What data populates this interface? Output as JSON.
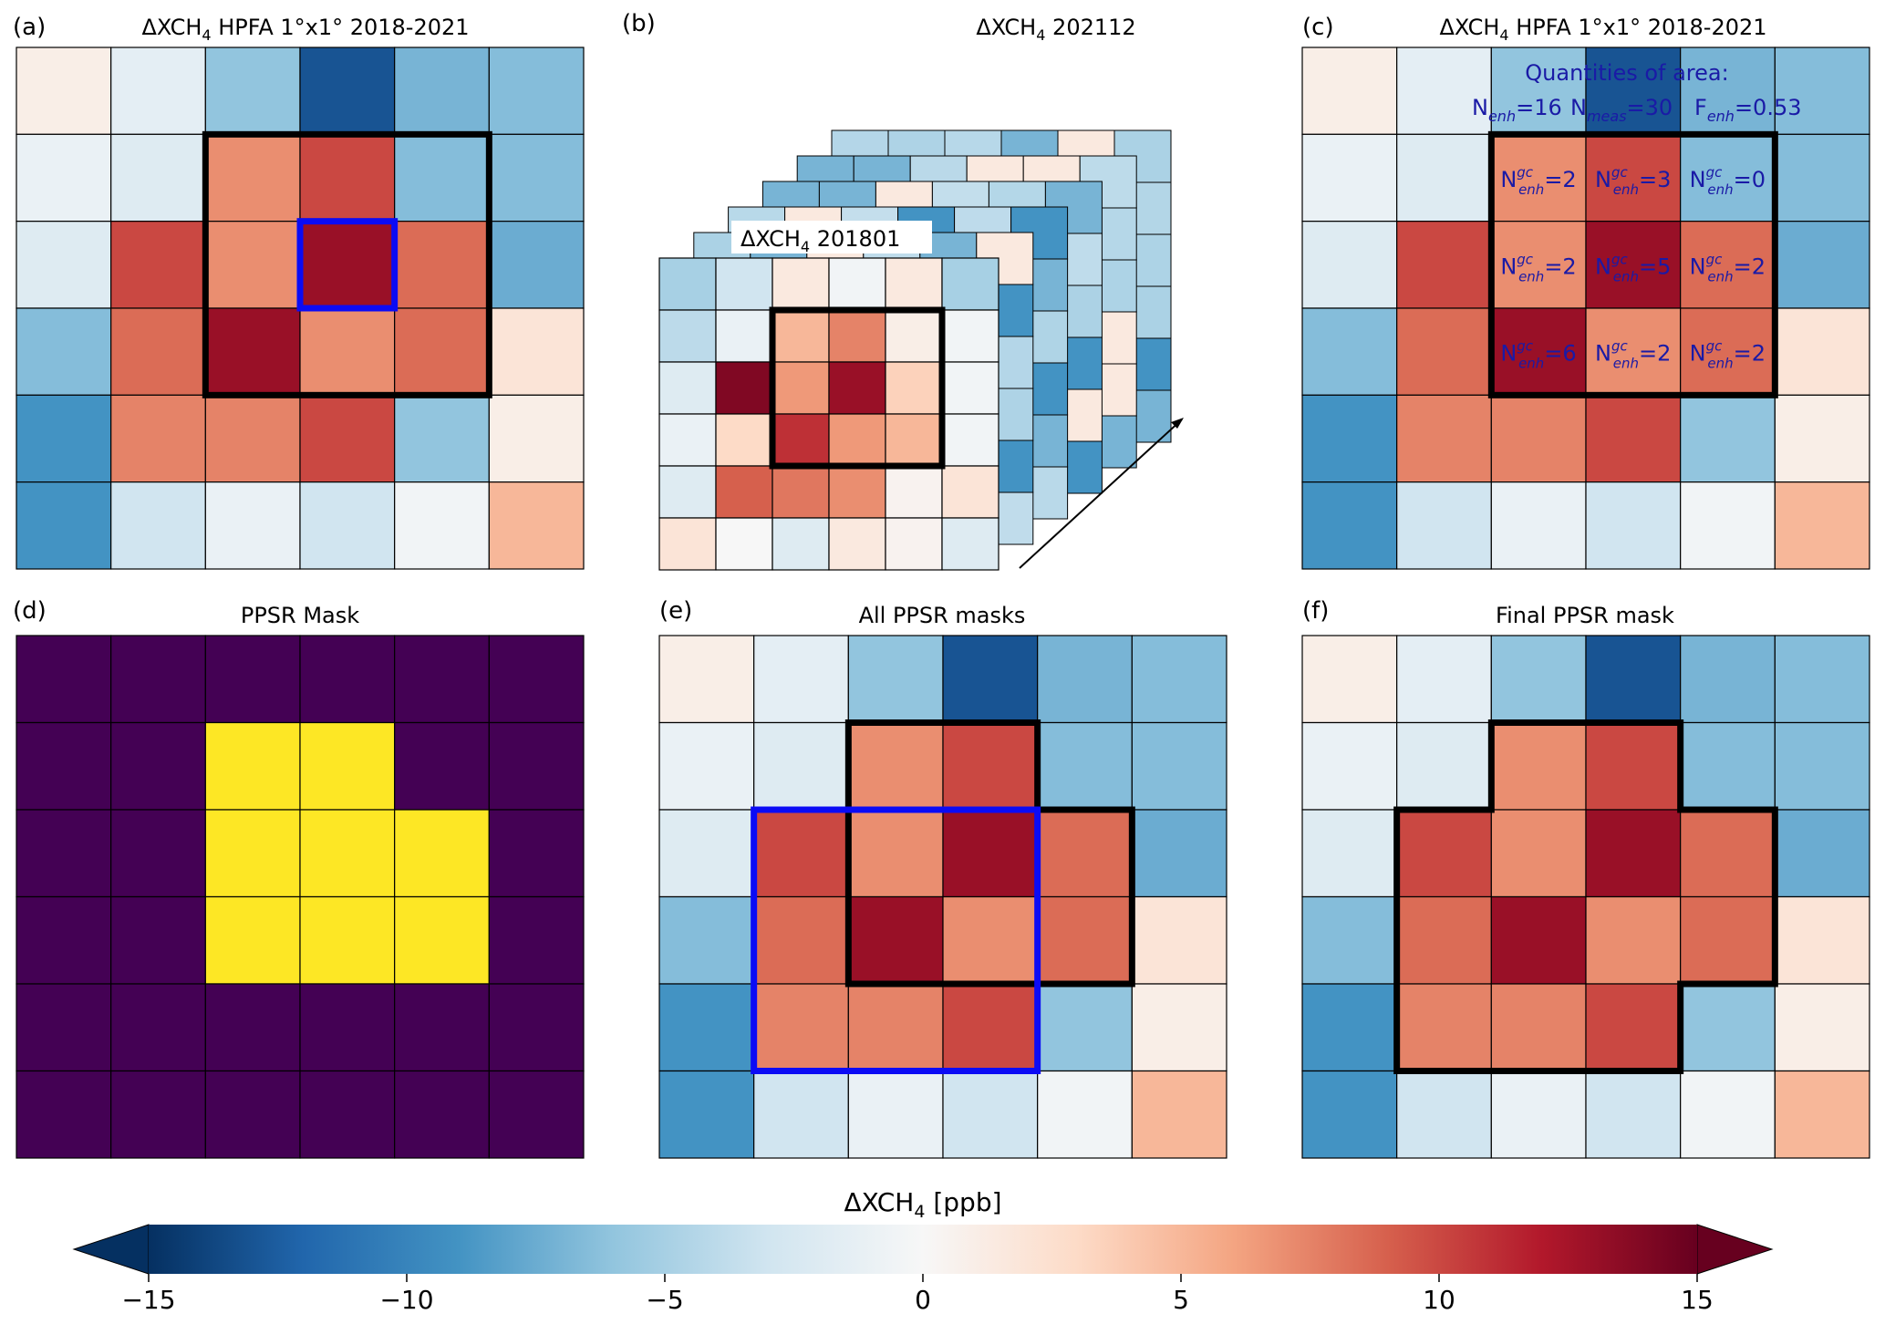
{
  "figure": {
    "panels": {
      "a": {
        "letter": "(a)",
        "title_main": "ΔXCH",
        "title_sub": "4",
        "title_rest": " HPFA 1°x1° 2018-2021"
      },
      "b": {
        "letter": "(b)",
        "top_main": "ΔXCH",
        "top_sub": "4",
        "top_rest": " 202112",
        "front_main": "ΔXCH",
        "front_sub": "4",
        "front_rest": " 201801"
      },
      "c": {
        "letter": "(c)",
        "title_main": "ΔXCH",
        "title_sub": "4",
        "title_rest": " HPFA 1°x1° 2018-2021",
        "quantities_title": "Quantities of area:",
        "quantities": [
          {
            "sym": "N",
            "sub": "enh",
            "val": "=16"
          },
          {
            "sym": "N",
            "sub": "meas",
            "val": "=30"
          },
          {
            "sym": "F",
            "sub": "enh",
            "val": "=0.53"
          }
        ],
        "cell_sym": "N",
        "cell_sup": "gc",
        "cell_sub": "enh"
      },
      "d": {
        "letter": "(d)",
        "title": "PPSR Mask"
      },
      "e": {
        "letter": "(e)",
        "title": "All PPSR masks"
      },
      "f": {
        "letter": "(f)",
        "title": "Final PPSR mask"
      }
    }
  },
  "chart_data": [
    {
      "type": "heatmap",
      "panel": "a",
      "title": "ΔXCH4 HPFA 1°x1° 2018-2021",
      "units": "ppb",
      "values": [
        [
          1,
          -1.5,
          -6,
          -13,
          -7,
          -6.5
        ],
        [
          -1,
          -2,
          7,
          10,
          -6.5,
          -6.5
        ],
        [
          -2,
          10,
          7,
          13,
          8.5,
          -7.5
        ],
        [
          -6.5,
          8.5,
          13,
          7,
          8.5,
          2
        ],
        [
          -9,
          7.5,
          7.5,
          10,
          -6,
          1
        ],
        [
          -9,
          -3,
          -1,
          -3,
          -0.5,
          5
        ]
      ],
      "highlight_black": {
        "rows": [
          1,
          3
        ],
        "cols": [
          2,
          4
        ]
      },
      "highlight_blue": {
        "rows": [
          2,
          2
        ],
        "cols": [
          3,
          3
        ]
      }
    },
    {
      "type": "heatmap",
      "panel": "b",
      "title": "ΔXCH4 201801",
      "units": "ppb",
      "values": [
        [
          -5,
          -3,
          1.5,
          -0.5,
          1.5,
          -5
        ],
        [
          -4,
          -1,
          5,
          7.5,
          1,
          -0.5
        ],
        [
          -2,
          14,
          6.5,
          13,
          3.5,
          -0.5
        ],
        [
          -1,
          3,
          11,
          6.5,
          5,
          -0.5
        ],
        [
          -2,
          9,
          8,
          7,
          0.5,
          2
        ],
        [
          2,
          0,
          -2,
          1.5,
          0.5,
          -2
        ]
      ],
      "highlight_black": {
        "rows": [
          1,
          3
        ],
        "cols": [
          2,
          4
        ]
      },
      "stack_top_title": "ΔXCH4 202112",
      "stack_count": 6
    },
    {
      "type": "heatmap",
      "panel": "c",
      "title": "ΔXCH4 HPFA 1°x1° 2018-2021",
      "units": "ppb",
      "values": [
        [
          1,
          -1.5,
          -6,
          -13,
          -7,
          -6.5
        ],
        [
          -1,
          -2,
          7,
          10,
          -6.5,
          -6.5
        ],
        [
          -2,
          10,
          7,
          13,
          8.5,
          -7.5
        ],
        [
          -6.5,
          8.5,
          13,
          7,
          8.5,
          2
        ],
        [
          -9,
          7.5,
          7.5,
          10,
          -6,
          1
        ],
        [
          -9,
          -3,
          -1,
          -3,
          -0.5,
          5
        ]
      ],
      "highlight_black": {
        "rows": [
          1,
          3
        ],
        "cols": [
          2,
          4
        ]
      },
      "quantities": {
        "N_enh": 16,
        "N_meas": 30,
        "F_enh": 0.53
      },
      "Ngc_enh": [
        [
          2,
          3,
          0
        ],
        [
          2,
          5,
          2
        ],
        [
          6,
          2,
          2
        ]
      ]
    },
    {
      "type": "heatmap",
      "panel": "d",
      "title": "PPSR Mask",
      "colors": {
        "0": "#440154",
        "1": "#fde725"
      },
      "values": [
        [
          0,
          0,
          0,
          0,
          0,
          0
        ],
        [
          0,
          0,
          1,
          1,
          0,
          0
        ],
        [
          0,
          0,
          1,
          1,
          1,
          0
        ],
        [
          0,
          0,
          1,
          1,
          1,
          0
        ],
        [
          0,
          0,
          0,
          0,
          0,
          0
        ],
        [
          0,
          0,
          0,
          0,
          0,
          0
        ]
      ]
    },
    {
      "type": "heatmap",
      "panel": "e",
      "title": "All PPSR masks",
      "units": "ppb",
      "values": [
        [
          1,
          -1.5,
          -6,
          -13,
          -7,
          -6.5
        ],
        [
          -1,
          -2,
          7,
          10,
          -6.5,
          -6.5
        ],
        [
          -2,
          10,
          7,
          13,
          8.5,
          -7.5
        ],
        [
          -6.5,
          8.5,
          13,
          7,
          8.5,
          2
        ],
        [
          -9,
          7.5,
          7.5,
          10,
          -6,
          1
        ],
        [
          -9,
          -3,
          -1,
          -3,
          -0.5,
          5
        ]
      ],
      "mask_outline_black": [
        [
          0,
          0,
          0,
          0,
          0,
          0
        ],
        [
          0,
          0,
          1,
          1,
          0,
          0
        ],
        [
          0,
          0,
          1,
          1,
          1,
          0
        ],
        [
          0,
          0,
          1,
          1,
          1,
          0
        ],
        [
          0,
          0,
          0,
          0,
          0,
          0
        ],
        [
          0,
          0,
          0,
          0,
          0,
          0
        ]
      ],
      "highlight_blue": {
        "rows": [
          2,
          4
        ],
        "cols": [
          1,
          3
        ]
      }
    },
    {
      "type": "heatmap",
      "panel": "f",
      "title": "Final PPSR mask",
      "units": "ppb",
      "values": [
        [
          1,
          -1.5,
          -6,
          -13,
          -7,
          -6.5
        ],
        [
          -1,
          -2,
          7,
          10,
          -6.5,
          -6.5
        ],
        [
          -2,
          10,
          7,
          13,
          8.5,
          -7.5
        ],
        [
          -6.5,
          8.5,
          13,
          7,
          8.5,
          2
        ],
        [
          -9,
          7.5,
          7.5,
          10,
          -6,
          1
        ],
        [
          -9,
          -3,
          -1,
          -3,
          -0.5,
          5
        ]
      ],
      "mask_outline_black": [
        [
          0,
          0,
          0,
          0,
          0,
          0
        ],
        [
          0,
          0,
          1,
          1,
          0,
          0
        ],
        [
          0,
          1,
          1,
          1,
          1,
          0
        ],
        [
          0,
          1,
          1,
          1,
          1,
          0
        ],
        [
          0,
          1,
          1,
          1,
          0,
          0
        ],
        [
          0,
          0,
          0,
          0,
          0,
          0
        ]
      ]
    },
    {
      "type": "colorbar",
      "label_main": "ΔXCH",
      "label_sub": "4",
      "label_rest": " [ppb]",
      "vmin": -15,
      "vmax": 15,
      "ticks": [
        -15,
        -10,
        -5,
        0,
        5,
        10,
        15
      ],
      "tick_labels": [
        "−15",
        "−10",
        "−5",
        "0",
        "5",
        "10",
        "15"
      ],
      "extend": "both",
      "colormap": "RdBu_r"
    }
  ]
}
